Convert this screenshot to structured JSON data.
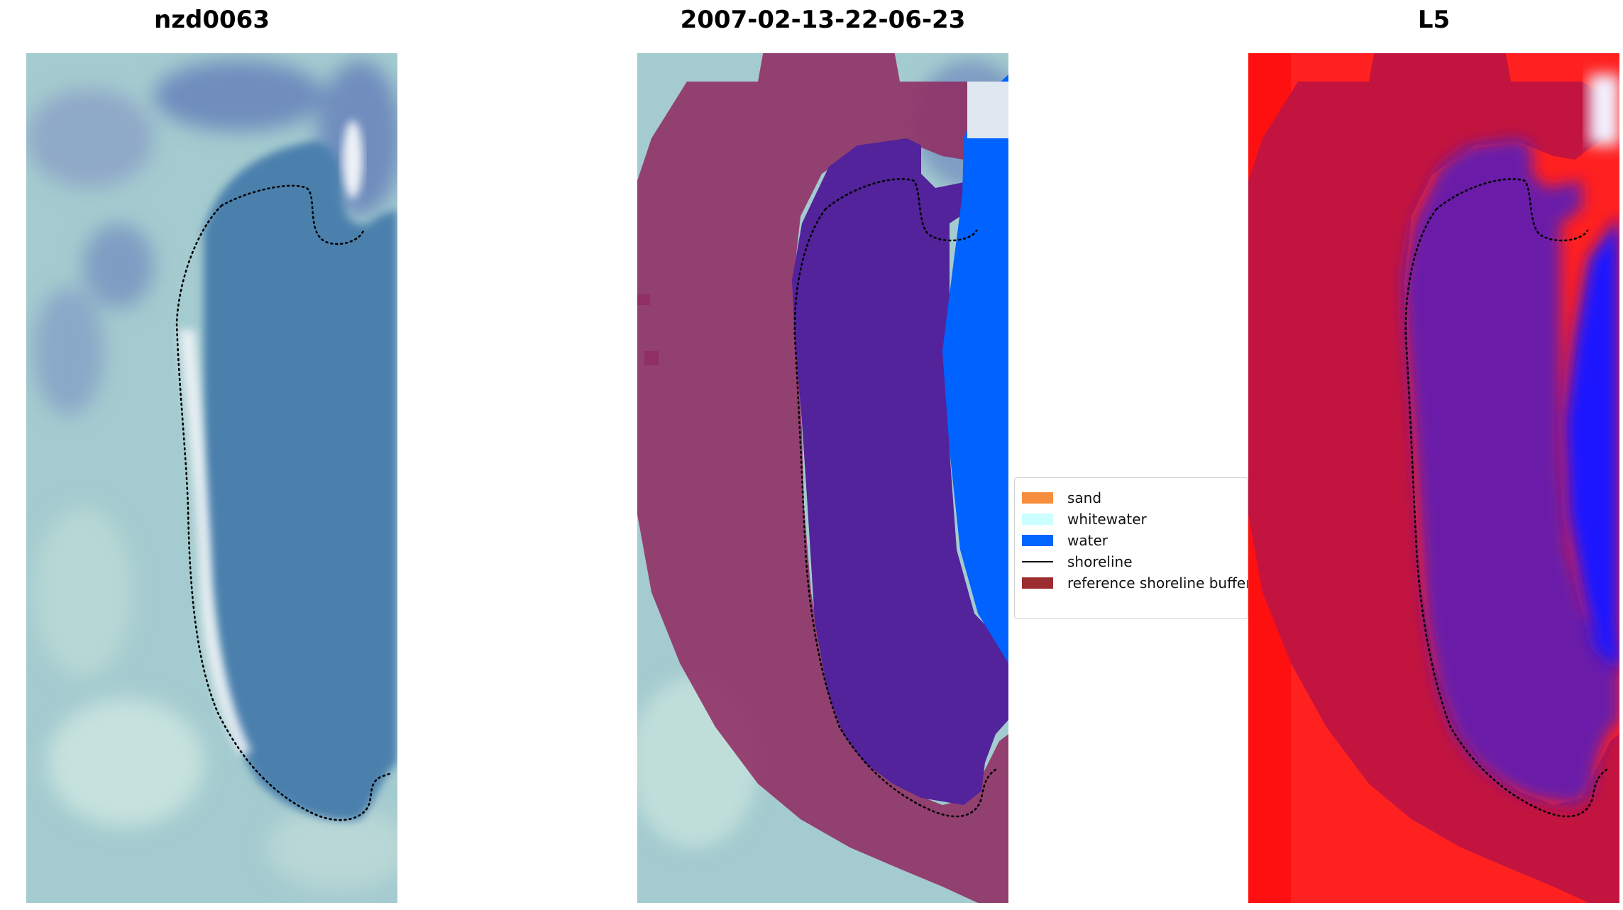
{
  "panels": [
    {
      "title": "nzd0063"
    },
    {
      "title": "2007-02-13-22-06-23"
    },
    {
      "title": "L5"
    }
  ],
  "legend": {
    "items": [
      {
        "label": "sand",
        "color": "#f78e3d",
        "kind": "patch"
      },
      {
        "label": "whitewater",
        "color": "#ccffff",
        "kind": "patch"
      },
      {
        "label": "water",
        "color": "#0066ff",
        "kind": "patch"
      },
      {
        "label": "shoreline",
        "color": "#000000",
        "kind": "line"
      },
      {
        "label": "reference shoreline buffer",
        "color": "#9b2d30",
        "kind": "patch"
      }
    ]
  },
  "colors": {
    "rgb_land": "#a6cfd0",
    "rgb_water": "#4d7fae",
    "buffer_overlay": "#8c2a5c",
    "water_class": "#0066ff",
    "classified_water": "#52239a",
    "mndwi_land": "#ff1f1f",
    "mndwi_buffer": "#c2143f",
    "mndwi_water": "#1a14ff",
    "mndwi_lagoon": "#6a1aa8"
  }
}
